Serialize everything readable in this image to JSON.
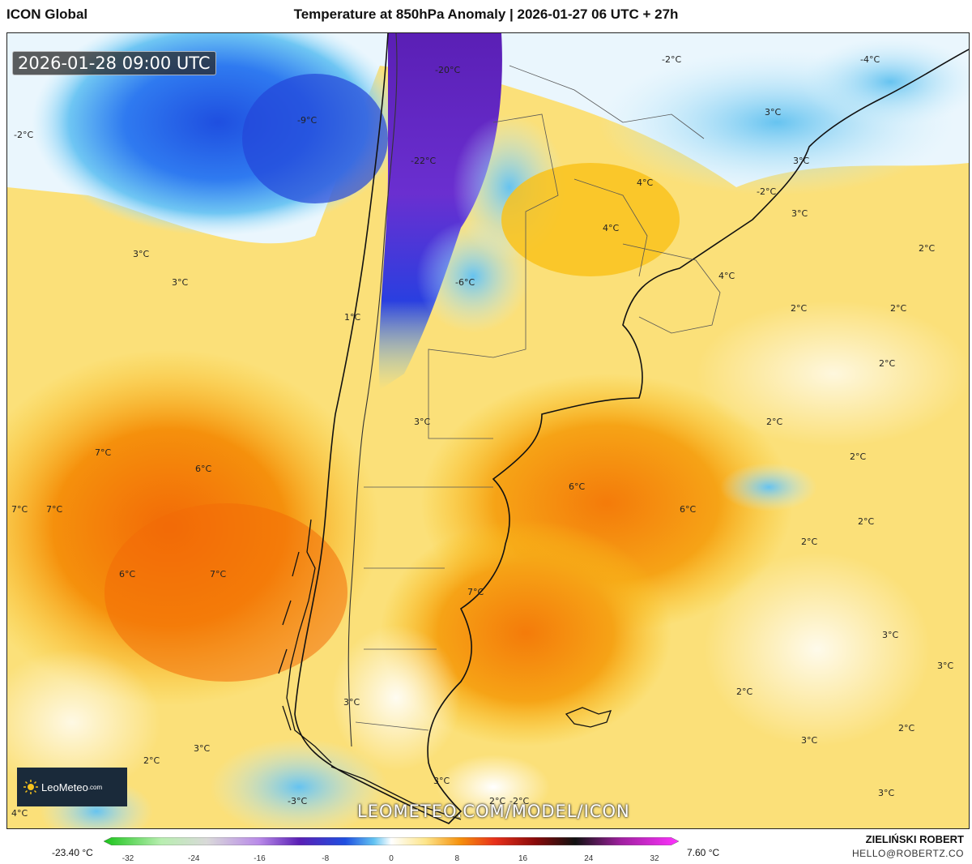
{
  "header": {
    "model": "ICON Global",
    "title": "Temperature at 850hPa Anomaly | 2026-01-27 06 UTC + 27h"
  },
  "map": {
    "valid_time": "2026-01-28 09:00 UTC",
    "site_url": "LEOMETEO.COM/MODEL/ICON",
    "logo_text": "LeoMeteo",
    "logo_suffix": ".com",
    "labels": [
      "-2°C",
      "-4°C",
      "-20°C",
      "-9°C",
      "-2°C",
      "-22°C",
      "3°C",
      "3°C",
      "4°C",
      "-2°C",
      "3°C",
      "4°C",
      "3°C",
      "2°C",
      "-6°C",
      "3°C",
      "4°C",
      "2°C",
      "2°C",
      "1°C",
      "2°C",
      "3°C",
      "2°C",
      "7°C",
      "6°C",
      "2°C",
      "7°C",
      "7°C",
      "6°C",
      "6°C",
      "2°C",
      "2°C",
      "6°C",
      "7°C",
      "7°C",
      "3°C",
      "3°C",
      "2°C",
      "3°C",
      "2°C",
      "3°C",
      "3°C",
      "2°C",
      "3°C",
      "-3°C",
      "3°C",
      "-2°C",
      "4°C",
      "2°C"
    ]
  },
  "colorbar": {
    "min_label": "-23.40 °C",
    "max_label": "7.60 °C",
    "ticks": [
      "-32",
      "-24",
      "-16",
      "-8",
      "0",
      "8",
      "16",
      "24",
      "32"
    ]
  },
  "footer": {
    "author": "ZIELIŃSKI ROBERT",
    "email": "HELLO@ROBERTZ.CO"
  },
  "colors": {
    "deep_cold": "#5a1fb5",
    "cold": "#1e5be6",
    "cool": "#62c3f2",
    "neutral": "#ffffff",
    "mild": "#fde58a",
    "warm": "#f9c21c",
    "hot": "#f58f0a",
    "coast": "#111111",
    "border": "#555555"
  }
}
